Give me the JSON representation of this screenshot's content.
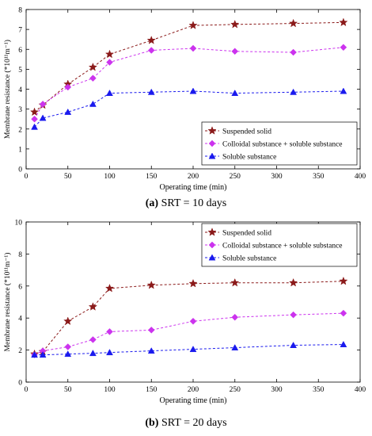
{
  "captions": [
    {
      "letter": "(a)",
      "text": " SRT = 10 days"
    },
    {
      "letter": "(b)",
      "text": " SRT = 20 days"
    }
  ],
  "chart_data": [
    {
      "type": "line",
      "xlabel": "Operating time (min)",
      "ylabel": "Membrane resistance (*10¹¹m⁻¹)",
      "xlim": [
        0,
        400
      ],
      "ylim": [
        0,
        8
      ],
      "xticks": [
        0,
        50,
        100,
        150,
        200,
        250,
        300,
        350,
        400
      ],
      "yticks": [
        0,
        1,
        2,
        3,
        4,
        5,
        6,
        7,
        8
      ],
      "grid": false,
      "legend_position": "bottom-right",
      "series": [
        {
          "name": "Suspended solid",
          "color": "#8b1a1a",
          "marker": "star",
          "x": [
            10,
            20,
            50,
            80,
            100,
            150,
            200,
            250,
            320,
            380
          ],
          "y": [
            2.85,
            3.2,
            4.25,
            5.1,
            5.75,
            6.45,
            7.2,
            7.25,
            7.3,
            7.35
          ]
        },
        {
          "name": "Colloidal substance + soluble substance",
          "color": "#cc33ee",
          "marker": "diamond",
          "x": [
            10,
            20,
            50,
            80,
            100,
            150,
            200,
            250,
            320,
            380
          ],
          "y": [
            2.5,
            3.25,
            4.1,
            4.55,
            5.35,
            5.95,
            6.05,
            5.9,
            5.85,
            6.1
          ]
        },
        {
          "name": "Soluble substance",
          "color": "#1a1aee",
          "marker": "triangle",
          "x": [
            10,
            20,
            50,
            80,
            100,
            150,
            200,
            250,
            320,
            380
          ],
          "y": [
            2.1,
            2.55,
            2.85,
            3.25,
            3.8,
            3.85,
            3.9,
            3.8,
            3.85,
            3.9
          ]
        }
      ]
    },
    {
      "type": "line",
      "xlabel": "Operating time (min)",
      "ylabel": "Membrane resistance (*10¹¹m⁻¹)",
      "xlim": [
        0,
        400
      ],
      "ylim": [
        0,
        10
      ],
      "xticks": [
        0,
        50,
        100,
        150,
        200,
        250,
        300,
        350,
        400
      ],
      "yticks": [
        0,
        2,
        4,
        6,
        8,
        10
      ],
      "grid": false,
      "legend_position": "top-right",
      "series": [
        {
          "name": "Suspended solid",
          "color": "#8b1a1a",
          "marker": "star",
          "x": [
            10,
            20,
            50,
            80,
            100,
            150,
            200,
            250,
            320,
            380
          ],
          "y": [
            1.75,
            1.9,
            3.8,
            4.7,
            5.85,
            6.05,
            6.15,
            6.2,
            6.2,
            6.3
          ]
        },
        {
          "name": "Colloidal substance + soluble substance",
          "color": "#cc33ee",
          "marker": "diamond",
          "x": [
            10,
            20,
            50,
            80,
            100,
            150,
            200,
            250,
            320,
            380
          ],
          "y": [
            1.7,
            1.95,
            2.2,
            2.65,
            3.15,
            3.25,
            3.8,
            4.05,
            4.2,
            4.3
          ]
        },
        {
          "name": "Soluble substance",
          "color": "#1a1aee",
          "marker": "triangle",
          "x": [
            10,
            20,
            50,
            80,
            100,
            150,
            200,
            250,
            320,
            380
          ],
          "y": [
            1.7,
            1.7,
            1.75,
            1.8,
            1.85,
            1.95,
            2.05,
            2.15,
            2.3,
            2.35
          ]
        }
      ]
    }
  ]
}
